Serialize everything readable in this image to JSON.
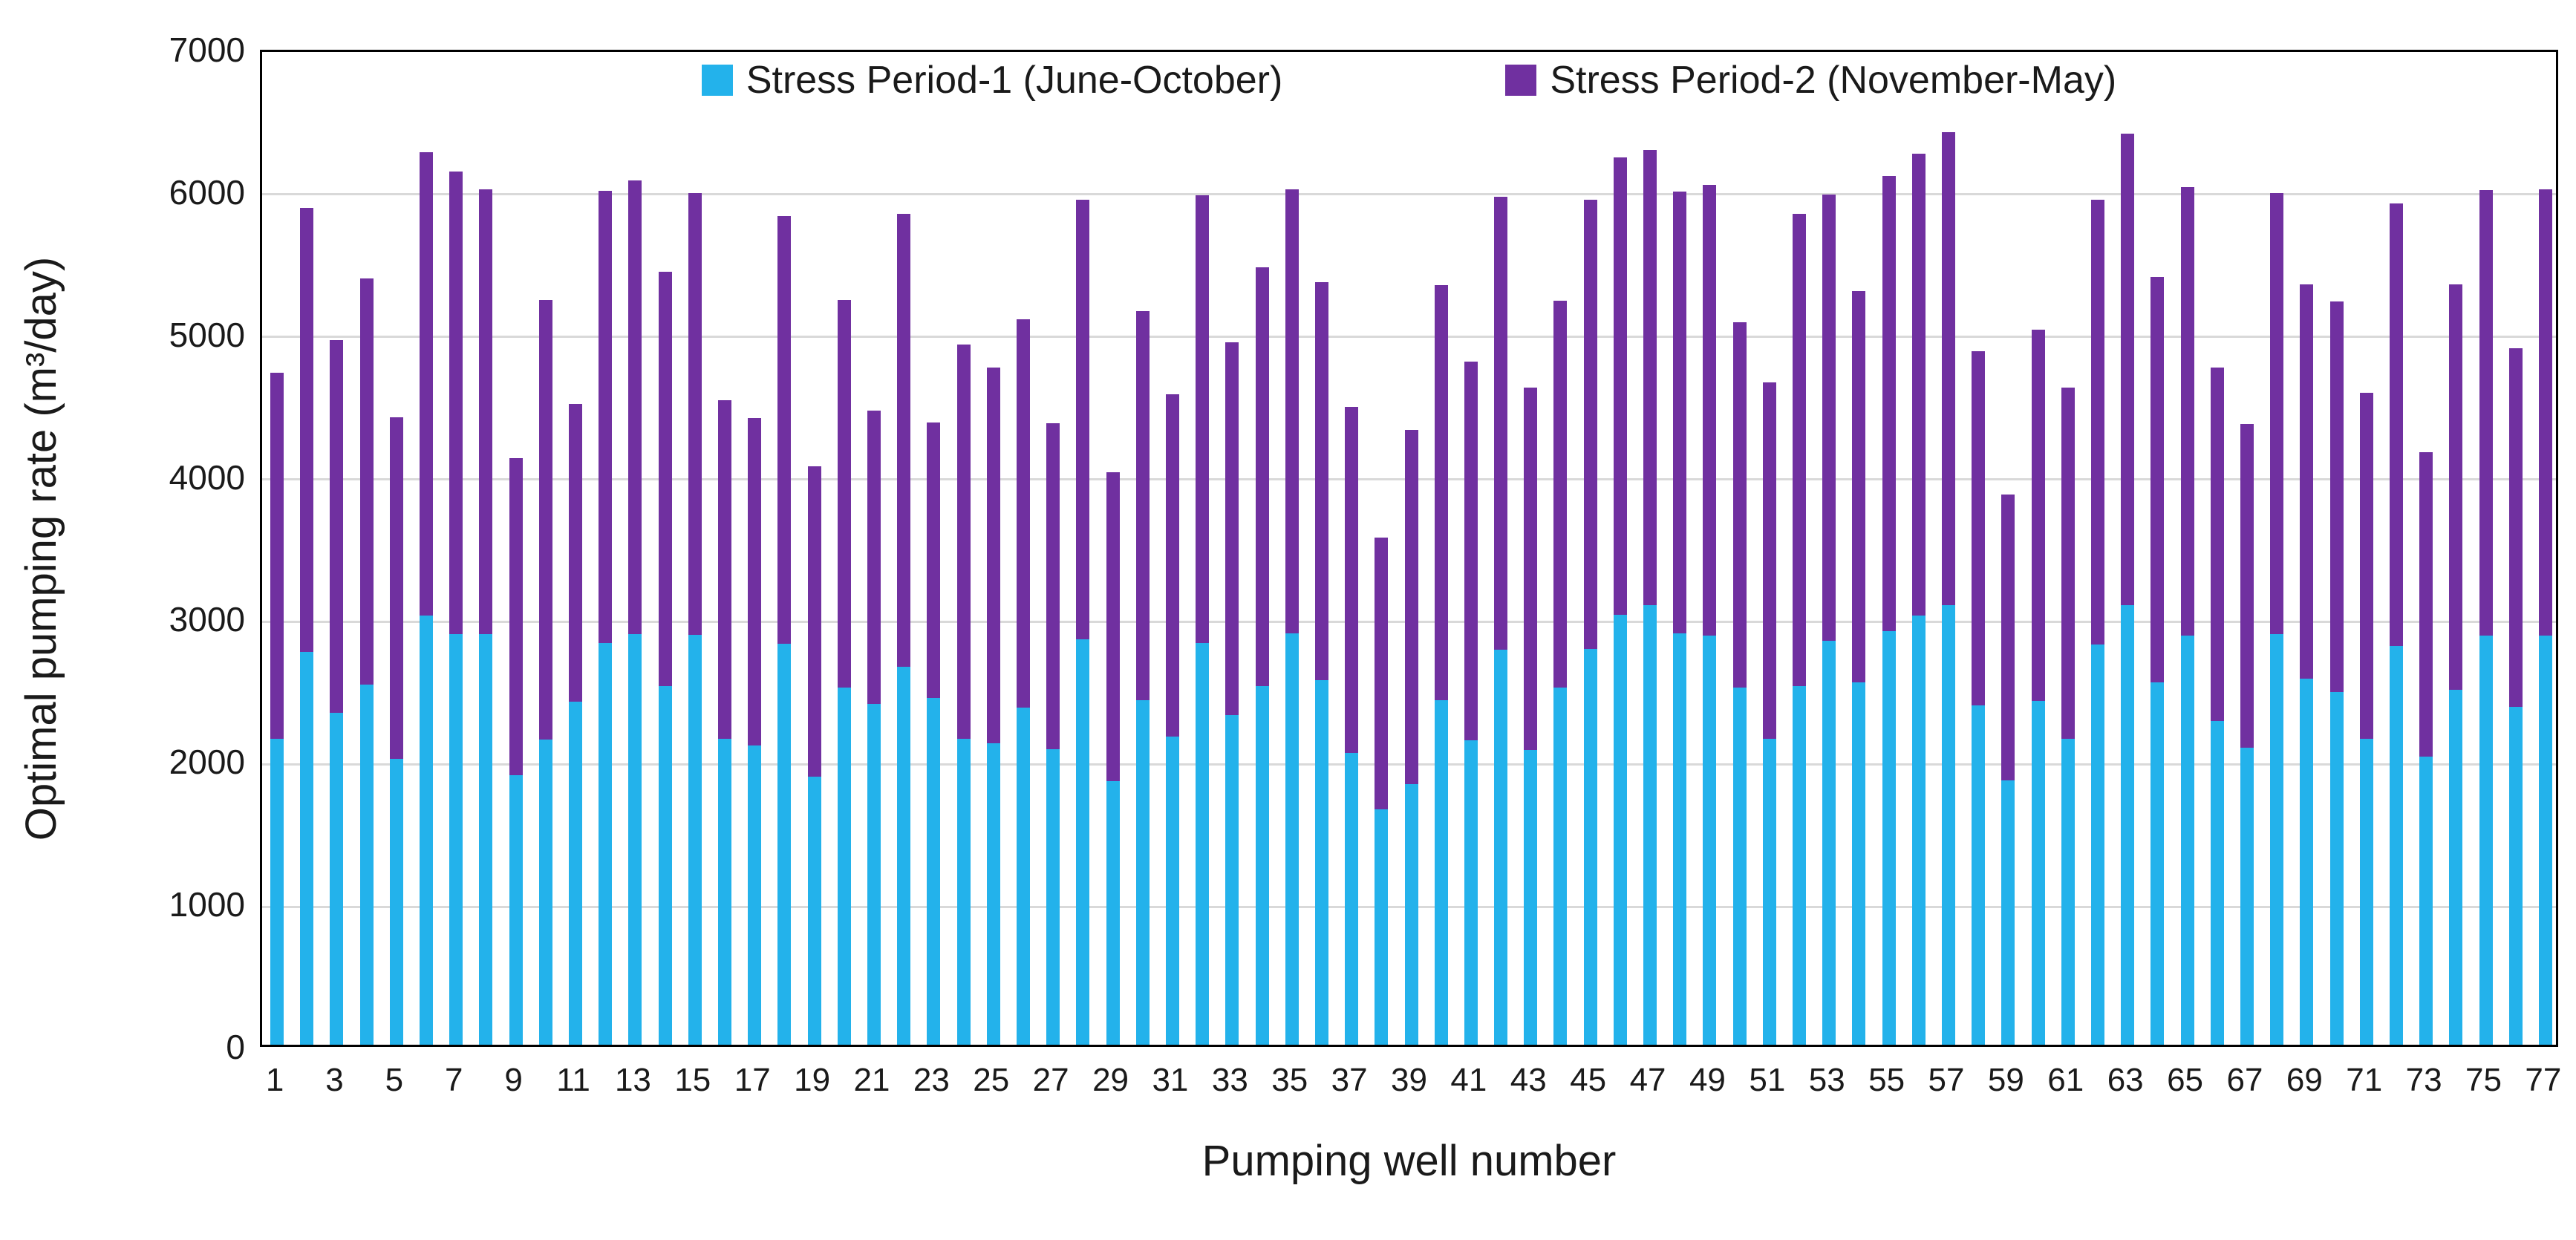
{
  "chart_data": {
    "type": "bar",
    "subtype": "stacked-vertical",
    "title": "",
    "xlabel": "Pumping well number",
    "ylabel": "Optimal pumping rate (m³/day)",
    "ylim": [
      0,
      7000
    ],
    "ytick_step": 1000,
    "ytick_labels": [
      "0",
      "1000",
      "2000",
      "3000",
      "4000",
      "5000",
      "6000",
      "7000"
    ],
    "xtick_labels_shown": [
      "1",
      "3",
      "5",
      "7",
      "9",
      "11",
      "13",
      "15",
      "17",
      "19",
      "21",
      "23",
      "25",
      "27",
      "29",
      "31",
      "33",
      "35",
      "37",
      "39",
      "41",
      "43",
      "45",
      "47",
      "49",
      "51",
      "53",
      "55",
      "57",
      "59",
      "61",
      "63",
      "65",
      "67",
      "69",
      "71",
      "73",
      "75",
      "77"
    ],
    "grid": "horizontal",
    "legend_position": "top-inside",
    "background_color": "#ffffff",
    "gridline_color": "#d9d9d9",
    "axis_color": "#000000",
    "categories": [
      1,
      2,
      3,
      4,
      5,
      6,
      7,
      8,
      9,
      10,
      11,
      12,
      13,
      14,
      15,
      16,
      17,
      18,
      19,
      20,
      21,
      22,
      23,
      24,
      25,
      26,
      27,
      28,
      29,
      30,
      31,
      32,
      33,
      34,
      35,
      36,
      37,
      38,
      39,
      40,
      41,
      42,
      43,
      44,
      45,
      46,
      47,
      48,
      49,
      50,
      51,
      52,
      53,
      54,
      55,
      56,
      57,
      58,
      59,
      60,
      61,
      62,
      63,
      64,
      65,
      66,
      67,
      68,
      69,
      70,
      71,
      72,
      73,
      74,
      75,
      76,
      77
    ],
    "series": [
      {
        "name": "Stress Period-1 (June-October)",
        "color": "#23b2eb",
        "values": [
          2145,
          2755,
          2330,
          2530,
          2005,
          3015,
          2880,
          2880,
          1890,
          2140,
          2410,
          2820,
          2880,
          2515,
          2875,
          2145,
          2100,
          2815,
          1880,
          2505,
          2390,
          2655,
          2435,
          2145,
          2115,
          2365,
          2075,
          2845,
          1850,
          2420,
          2165,
          2820,
          2315,
          2515,
          2890,
          2560,
          2050,
          1650,
          1830,
          2420,
          2135,
          2775,
          2070,
          2505,
          2780,
          3020,
          3085,
          2890,
          2870,
          2505,
          2150,
          2520,
          2835,
          2545,
          2905,
          3015,
          3085,
          2380,
          1855,
          2415,
          2145,
          2810,
          3085,
          2545,
          2870,
          2275,
          2085,
          2885,
          2570,
          2475,
          2145,
          2800,
          2025,
          2490,
          2870,
          2370,
          2870
        ]
      },
      {
        "name": "Stress Period-2 (November-May)",
        "color": "#7030a0",
        "values": [
          2570,
          3120,
          2615,
          2850,
          2400,
          3250,
          3250,
          3125,
          2230,
          3090,
          2090,
          3175,
          3185,
          2910,
          3105,
          2380,
          2300,
          3000,
          2180,
          2725,
          2060,
          3175,
          1935,
          2770,
          2640,
          2725,
          2290,
          3085,
          2170,
          2730,
          2400,
          3145,
          2615,
          2940,
          3115,
          2795,
          2430,
          1910,
          2485,
          2910,
          2660,
          3180,
          2545,
          2720,
          3150,
          3210,
          3195,
          3100,
          3165,
          2565,
          2500,
          3315,
          3135,
          2745,
          3195,
          3240,
          3320,
          2490,
          2005,
          2605,
          2470,
          3120,
          3310,
          2845,
          3150,
          2480,
          2275,
          3095,
          2770,
          2740,
          2430,
          3105,
          2135,
          2845,
          3130,
          2520,
          3135
        ]
      }
    ]
  },
  "layout_note_values_visible_only": true
}
